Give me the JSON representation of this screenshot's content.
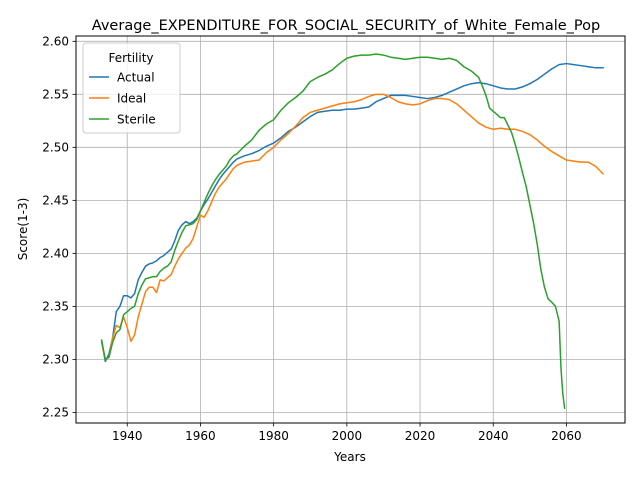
{
  "chart_data": {
    "type": "line",
    "title": "Average_EXPENDITURE_FOR_SOCIAL_SECURITY_of_White_Female_Pop",
    "xlabel": "Years",
    "ylabel": "Score(1-3)",
    "xlim": [
      1926,
      2076
    ],
    "ylim": [
      2.24,
      2.605
    ],
    "xticks": [
      1940,
      1960,
      1980,
      2000,
      2020,
      2040,
      2060
    ],
    "yticks": [
      2.25,
      2.3,
      2.35,
      2.4,
      2.45,
      2.5,
      2.55,
      2.6
    ],
    "ytick_labels": [
      "2.25",
      "2.30",
      "2.35",
      "2.40",
      "2.45",
      "2.50",
      "2.55",
      "2.60"
    ],
    "grid": true,
    "legend": {
      "title": "Fertility",
      "placement": "top-left"
    },
    "series": [
      {
        "name": "Actual",
        "color": "#1f77b4",
        "points": [
          [
            1933,
            2.318
          ],
          [
            1934,
            2.298
          ],
          [
            1935,
            2.305
          ],
          [
            1936,
            2.32
          ],
          [
            1937,
            2.345
          ],
          [
            1938,
            2.35
          ],
          [
            1939,
            2.36
          ],
          [
            1940,
            2.36
          ],
          [
            1941,
            2.358
          ],
          [
            1942,
            2.362
          ],
          [
            1943,
            2.375
          ],
          [
            1944,
            2.382
          ],
          [
            1945,
            2.388
          ],
          [
            1946,
            2.39
          ],
          [
            1947,
            2.391
          ],
          [
            1948,
            2.393
          ],
          [
            1949,
            2.396
          ],
          [
            1950,
            2.398
          ],
          [
            1951,
            2.401
          ],
          [
            1952,
            2.404
          ],
          [
            1953,
            2.412
          ],
          [
            1954,
            2.422
          ],
          [
            1955,
            2.427
          ],
          [
            1956,
            2.43
          ],
          [
            1957,
            2.428
          ],
          [
            1958,
            2.43
          ],
          [
            1959,
            2.433
          ],
          [
            1960,
            2.44
          ],
          [
            1961,
            2.446
          ],
          [
            1962,
            2.451
          ],
          [
            1963,
            2.457
          ],
          [
            1964,
            2.463
          ],
          [
            1965,
            2.469
          ],
          [
            1966,
            2.474
          ],
          [
            1967,
            2.478
          ],
          [
            1968,
            2.482
          ],
          [
            1969,
            2.486
          ],
          [
            1970,
            2.489
          ],
          [
            1972,
            2.492
          ],
          [
            1974,
            2.494
          ],
          [
            1976,
            2.497
          ],
          [
            1978,
            2.501
          ],
          [
            1980,
            2.504
          ],
          [
            1982,
            2.509
          ],
          [
            1984,
            2.515
          ],
          [
            1986,
            2.519
          ],
          [
            1988,
            2.524
          ],
          [
            1990,
            2.529
          ],
          [
            1992,
            2.533
          ],
          [
            1994,
            2.534
          ],
          [
            1996,
            2.535
          ],
          [
            1998,
            2.535
          ],
          [
            2000,
            2.536
          ],
          [
            2002,
            2.536
          ],
          [
            2004,
            2.537
          ],
          [
            2006,
            2.538
          ],
          [
            2008,
            2.543
          ],
          [
            2010,
            2.546
          ],
          [
            2012,
            2.549
          ],
          [
            2014,
            2.549
          ],
          [
            2016,
            2.549
          ],
          [
            2018,
            2.548
          ],
          [
            2020,
            2.547
          ],
          [
            2022,
            2.546
          ],
          [
            2024,
            2.547
          ],
          [
            2026,
            2.549
          ],
          [
            2028,
            2.552
          ],
          [
            2030,
            2.555
          ],
          [
            2032,
            2.558
          ],
          [
            2034,
            2.56
          ],
          [
            2036,
            2.561
          ],
          [
            2038,
            2.56
          ],
          [
            2040,
            2.558
          ],
          [
            2042,
            2.556
          ],
          [
            2044,
            2.555
          ],
          [
            2046,
            2.555
          ],
          [
            2048,
            2.557
          ],
          [
            2050,
            2.56
          ],
          [
            2052,
            2.564
          ],
          [
            2054,
            2.569
          ],
          [
            2056,
            2.574
          ],
          [
            2058,
            2.578
          ],
          [
            2060,
            2.579
          ],
          [
            2062,
            2.578
          ],
          [
            2064,
            2.577
          ],
          [
            2066,
            2.576
          ],
          [
            2068,
            2.575
          ],
          [
            2070,
            2.575
          ]
        ]
      },
      {
        "name": "Ideal",
        "color": "#ff7f0e",
        "points": [
          [
            1933,
            2.316
          ],
          [
            1934,
            2.3
          ],
          [
            1935,
            2.302
          ],
          [
            1936,
            2.32
          ],
          [
            1937,
            2.332
          ],
          [
            1938,
            2.33
          ],
          [
            1939,
            2.34
          ],
          [
            1940,
            2.33
          ],
          [
            1941,
            2.317
          ],
          [
            1942,
            2.323
          ],
          [
            1943,
            2.34
          ],
          [
            1944,
            2.352
          ],
          [
            1945,
            2.364
          ],
          [
            1946,
            2.368
          ],
          [
            1947,
            2.368
          ],
          [
            1948,
            2.363
          ],
          [
            1949,
            2.375
          ],
          [
            1950,
            2.374
          ],
          [
            1951,
            2.377
          ],
          [
            1952,
            2.38
          ],
          [
            1953,
            2.388
          ],
          [
            1954,
            2.395
          ],
          [
            1955,
            2.4
          ],
          [
            1956,
            2.405
          ],
          [
            1957,
            2.408
          ],
          [
            1958,
            2.414
          ],
          [
            1959,
            2.425
          ],
          [
            1960,
            2.436
          ],
          [
            1961,
            2.434
          ],
          [
            1962,
            2.44
          ],
          [
            1963,
            2.448
          ],
          [
            1964,
            2.456
          ],
          [
            1965,
            2.462
          ],
          [
            1966,
            2.466
          ],
          [
            1967,
            2.47
          ],
          [
            1968,
            2.475
          ],
          [
            1969,
            2.48
          ],
          [
            1970,
            2.483
          ],
          [
            1972,
            2.486
          ],
          [
            1974,
            2.487
          ],
          [
            1976,
            2.488
          ],
          [
            1978,
            2.495
          ],
          [
            1980,
            2.5
          ],
          [
            1982,
            2.507
          ],
          [
            1984,
            2.513
          ],
          [
            1986,
            2.52
          ],
          [
            1988,
            2.528
          ],
          [
            1990,
            2.533
          ],
          [
            1992,
            2.535
          ],
          [
            1994,
            2.537
          ],
          [
            1996,
            2.539
          ],
          [
            1998,
            2.541
          ],
          [
            2000,
            2.542
          ],
          [
            2002,
            2.543
          ],
          [
            2004,
            2.545
          ],
          [
            2006,
            2.548
          ],
          [
            2008,
            2.55
          ],
          [
            2010,
            2.55
          ],
          [
            2012,
            2.547
          ],
          [
            2014,
            2.543
          ],
          [
            2016,
            2.541
          ],
          [
            2018,
            2.54
          ],
          [
            2020,
            2.541
          ],
          [
            2022,
            2.544
          ],
          [
            2024,
            2.546
          ],
          [
            2026,
            2.546
          ],
          [
            2028,
            2.545
          ],
          [
            2030,
            2.541
          ],
          [
            2032,
            2.535
          ],
          [
            2034,
            2.529
          ],
          [
            2036,
            2.523
          ],
          [
            2038,
            2.519
          ],
          [
            2040,
            2.517
          ],
          [
            2042,
            2.518
          ],
          [
            2044,
            2.517
          ],
          [
            2046,
            2.517
          ],
          [
            2048,
            2.515
          ],
          [
            2050,
            2.512
          ],
          [
            2052,
            2.507
          ],
          [
            2054,
            2.501
          ],
          [
            2056,
            2.496
          ],
          [
            2058,
            2.492
          ],
          [
            2060,
            2.488
          ],
          [
            2062,
            2.487
          ],
          [
            2064,
            2.486
          ],
          [
            2066,
            2.486
          ],
          [
            2068,
            2.482
          ],
          [
            2070,
            2.475
          ]
        ]
      },
      {
        "name": "Sterile",
        "color": "#2ca02c",
        "points": [
          [
            1933,
            2.318
          ],
          [
            1934,
            2.3
          ],
          [
            1935,
            2.302
          ],
          [
            1936,
            2.316
          ],
          [
            1937,
            2.325
          ],
          [
            1938,
            2.328
          ],
          [
            1939,
            2.342
          ],
          [
            1940,
            2.345
          ],
          [
            1941,
            2.348
          ],
          [
            1942,
            2.35
          ],
          [
            1943,
            2.362
          ],
          [
            1944,
            2.37
          ],
          [
            1945,
            2.376
          ],
          [
            1946,
            2.377
          ],
          [
            1947,
            2.378
          ],
          [
            1948,
            2.378
          ],
          [
            1949,
            2.383
          ],
          [
            1950,
            2.386
          ],
          [
            1951,
            2.388
          ],
          [
            1952,
            2.392
          ],
          [
            1953,
            2.403
          ],
          [
            1954,
            2.412
          ],
          [
            1955,
            2.42
          ],
          [
            1956,
            2.426
          ],
          [
            1957,
            2.427
          ],
          [
            1958,
            2.428
          ],
          [
            1959,
            2.432
          ],
          [
            1960,
            2.44
          ],
          [
            1961,
            2.448
          ],
          [
            1962,
            2.456
          ],
          [
            1963,
            2.463
          ],
          [
            1964,
            2.469
          ],
          [
            1965,
            2.474
          ],
          [
            1966,
            2.478
          ],
          [
            1967,
            2.482
          ],
          [
            1968,
            2.488
          ],
          [
            1969,
            2.492
          ],
          [
            1970,
            2.494
          ],
          [
            1972,
            2.501
          ],
          [
            1974,
            2.507
          ],
          [
            1976,
            2.516
          ],
          [
            1978,
            2.522
          ],
          [
            1980,
            2.526
          ],
          [
            1982,
            2.535
          ],
          [
            1984,
            2.542
          ],
          [
            1986,
            2.547
          ],
          [
            1988,
            2.553
          ],
          [
            1990,
            2.562
          ],
          [
            1992,
            2.566
          ],
          [
            1994,
            2.569
          ],
          [
            1996,
            2.573
          ],
          [
            1998,
            2.579
          ],
          [
            2000,
            2.584
          ],
          [
            2002,
            2.586
          ],
          [
            2004,
            2.587
          ],
          [
            2006,
            2.587
          ],
          [
            2008,
            2.588
          ],
          [
            2010,
            2.587
          ],
          [
            2012,
            2.585
          ],
          [
            2014,
            2.584
          ],
          [
            2016,
            2.583
          ],
          [
            2018,
            2.584
          ],
          [
            2020,
            2.585
          ],
          [
            2022,
            2.585
          ],
          [
            2024,
            2.584
          ],
          [
            2026,
            2.583
          ],
          [
            2028,
            2.584
          ],
          [
            2030,
            2.582
          ],
          [
            2032,
            2.576
          ],
          [
            2034,
            2.572
          ],
          [
            2036,
            2.566
          ],
          [
            2037,
            2.558
          ],
          [
            2038,
            2.549
          ],
          [
            2039,
            2.537
          ],
          [
            2040,
            2.534
          ],
          [
            2041,
            2.531
          ],
          [
            2042,
            2.528
          ],
          [
            2043,
            2.528
          ],
          [
            2044,
            2.521
          ],
          [
            2045,
            2.514
          ],
          [
            2046,
            2.503
          ],
          [
            2047,
            2.49
          ],
          [
            2048,
            2.476
          ],
          [
            2049,
            2.463
          ],
          [
            2050,
            2.446
          ],
          [
            2051,
            2.429
          ],
          [
            2052,
            2.409
          ],
          [
            2053,
            2.385
          ],
          [
            2054,
            2.368
          ],
          [
            2055,
            2.357
          ],
          [
            2056,
            2.354
          ],
          [
            2057,
            2.35
          ],
          [
            2058,
            2.336
          ],
          [
            2058.5,
            2.292
          ],
          [
            2059,
            2.268
          ],
          [
            2059.5,
            2.254
          ]
        ]
      }
    ]
  }
}
